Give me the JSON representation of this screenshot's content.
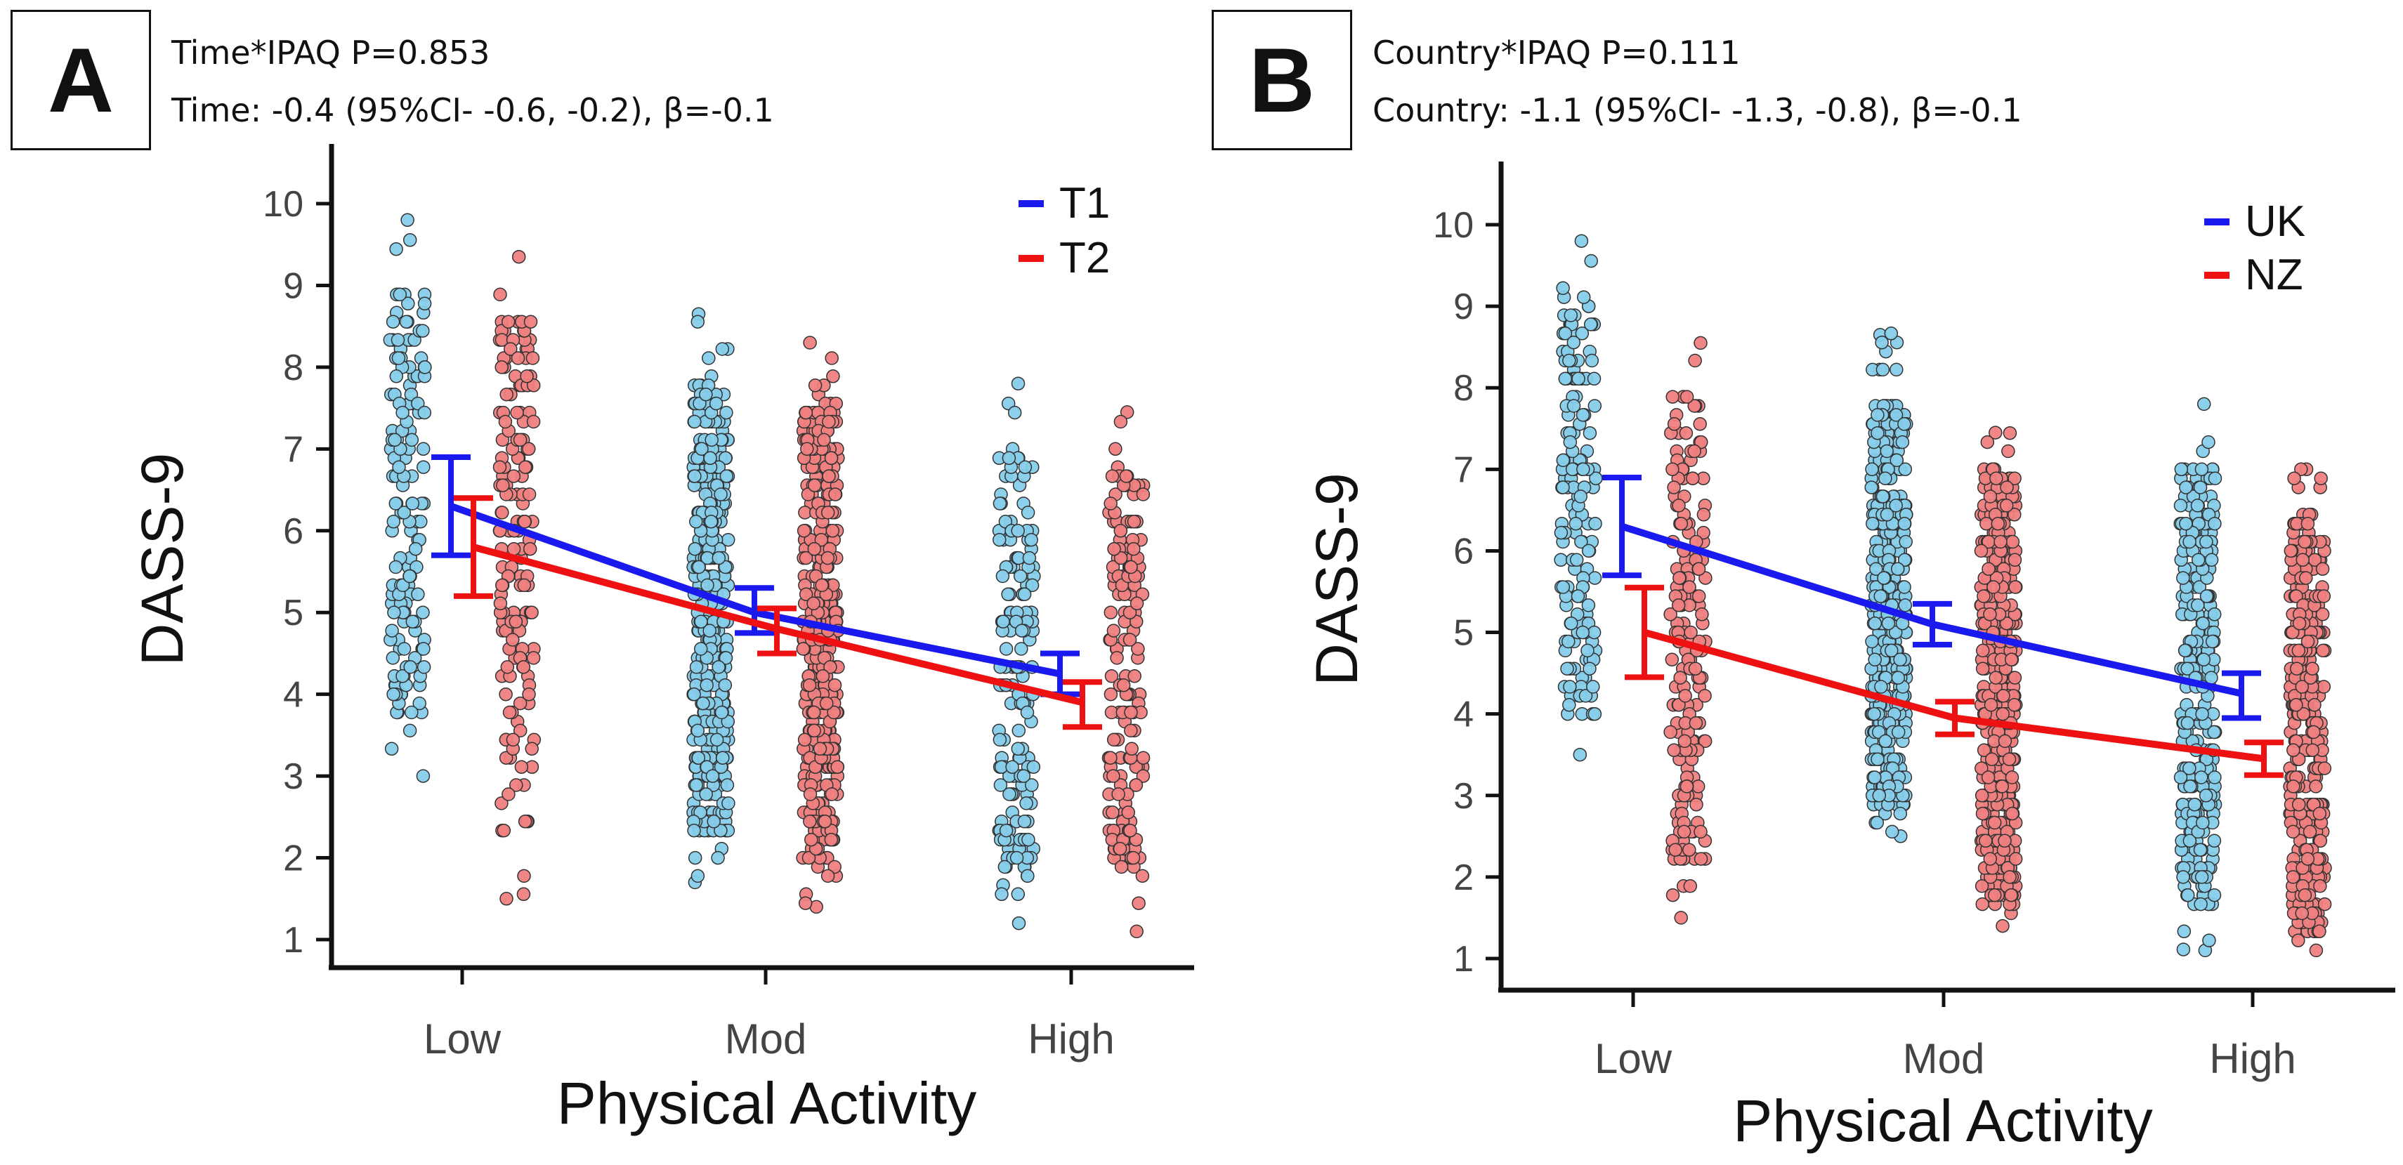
{
  "figure": {
    "x_categories": [
      "Low",
      "Mod",
      "High"
    ],
    "y_ticks": [
      "1",
      "2",
      "3",
      "4",
      "5",
      "6",
      "7",
      "8",
      "9",
      "10"
    ],
    "colors": {
      "blue_line": "#1a1aee",
      "red_line": "#ee1111",
      "blue_points": "#87ceeb",
      "red_points": "#f08080",
      "point_edge": "#333333"
    }
  },
  "panels": [
    {
      "letter": "A",
      "interaction_label": "Time*IPAQ",
      "interaction_p": "P=0.853",
      "main_effect": "Time: -0.4 (95%CI- -0.6, -0.2), β=-0.1"
    },
    {
      "letter": "B",
      "interaction_label": "Country*IPAQ",
      "interaction_p": "P=0.111",
      "main_effect": "Country: -1.1 (95%CI- -1.3, -0.8), β=-0.1"
    }
  ],
  "chart_data": [
    {
      "type": "line",
      "title": "A",
      "xlabel": "Physical Activity",
      "ylabel": "DASS-9",
      "categories": [
        "Low",
        "Mod",
        "High"
      ],
      "ylim": [
        0.6,
        10.35
      ],
      "yticks": [
        1,
        2,
        3,
        4,
        5,
        6,
        7,
        8,
        9,
        10
      ],
      "legend": "top-right",
      "series": [
        {
          "name": "T1",
          "color": "#1a1aee",
          "point_color": "#87ceeb",
          "values": [
            6.3,
            5.0,
            4.25
          ],
          "ci_low": [
            5.7,
            4.75,
            4.0
          ],
          "ci_high": [
            6.9,
            5.3,
            4.5
          ],
          "scatter": [
            {
              "min": 3.0,
              "max": 9.8,
              "n": 150,
              "dense_min": 3.7,
              "dense_max": 9.0
            },
            {
              "min": 1.7,
              "max": 8.65,
              "n": 400,
              "dense_min": 2.3,
              "dense_max": 7.8
            },
            {
              "min": 1.2,
              "max": 7.8,
              "n": 170,
              "dense_min": 1.8,
              "dense_max": 7.0
            }
          ]
        },
        {
          "name": "T2",
          "color": "#ee1111",
          "point_color": "#f08080",
          "values": [
            5.8,
            4.8,
            3.9
          ],
          "ci_low": [
            5.2,
            4.5,
            3.6
          ],
          "ci_high": [
            6.4,
            5.05,
            4.15
          ],
          "scatter": [
            {
              "min": 1.5,
              "max": 9.35,
              "n": 170,
              "dense_min": 2.3,
              "dense_max": 8.6
            },
            {
              "min": 1.4,
              "max": 8.3,
              "n": 420,
              "dense_min": 2.0,
              "dense_max": 7.5
            },
            {
              "min": 1.1,
              "max": 7.45,
              "n": 170,
              "dense_min": 1.7,
              "dense_max": 6.8
            }
          ]
        }
      ]
    },
    {
      "type": "line",
      "title": "B",
      "xlabel": "Physical Activity",
      "ylabel": "DASS-9",
      "categories": [
        "Low",
        "Mod",
        "High"
      ],
      "ylim": [
        0.6,
        10.35
      ],
      "yticks": [
        1,
        2,
        3,
        4,
        5,
        6,
        7,
        8,
        9,
        10
      ],
      "legend": "top-right",
      "series": [
        {
          "name": "UK",
          "color": "#1a1aee",
          "point_color": "#87ceeb",
          "values": [
            6.3,
            5.1,
            4.25
          ],
          "ci_low": [
            5.7,
            4.85,
            3.95
          ],
          "ci_high": [
            6.9,
            5.35,
            4.5
          ],
          "scatter": [
            {
              "min": 3.5,
              "max": 9.8,
              "n": 160,
              "dense_min": 4.0,
              "dense_max": 9.0
            },
            {
              "min": 2.5,
              "max": 8.65,
              "n": 420,
              "dense_min": 2.8,
              "dense_max": 7.8
            },
            {
              "min": 1.1,
              "max": 7.8,
              "n": 300,
              "dense_min": 1.8,
              "dense_max": 7.0
            }
          ]
        },
        {
          "name": "NZ",
          "color": "#ee1111",
          "point_color": "#f08080",
          "values": [
            5.0,
            3.95,
            3.45
          ],
          "ci_low": [
            4.45,
            3.75,
            3.25
          ],
          "ci_high": [
            5.55,
            4.15,
            3.65
          ],
          "scatter": [
            {
              "min": 1.5,
              "max": 8.55,
              "n": 180,
              "dense_min": 2.2,
              "dense_max": 8.0
            },
            {
              "min": 1.4,
              "max": 7.45,
              "n": 430,
              "dense_min": 1.7,
              "dense_max": 7.0
            },
            {
              "min": 1.1,
              "max": 7.0,
              "n": 320,
              "dense_min": 1.3,
              "dense_max": 6.5
            }
          ]
        }
      ]
    }
  ]
}
